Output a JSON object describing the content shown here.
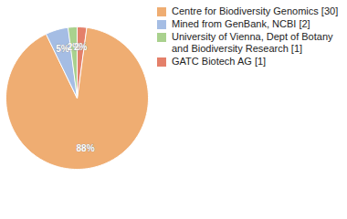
{
  "chart_data": {
    "type": "pie",
    "categories": [
      "Centre for Biodiversity Genomics [30]",
      "Mined from GenBank, NCBI [2]",
      "University of Vienna, Dept of Botany and Biodiversity Research [1]",
      "GATC Biotech AG [1]"
    ],
    "values": [
      88,
      5,
      2,
      2
    ],
    "value_labels": [
      "88%",
      "5%",
      "2%",
      "2%"
    ],
    "colors": [
      "#efad72",
      "#a5bde4",
      "#a9d18e",
      "#e4806a"
    ],
    "data_labels": true,
    "legend": "right"
  }
}
